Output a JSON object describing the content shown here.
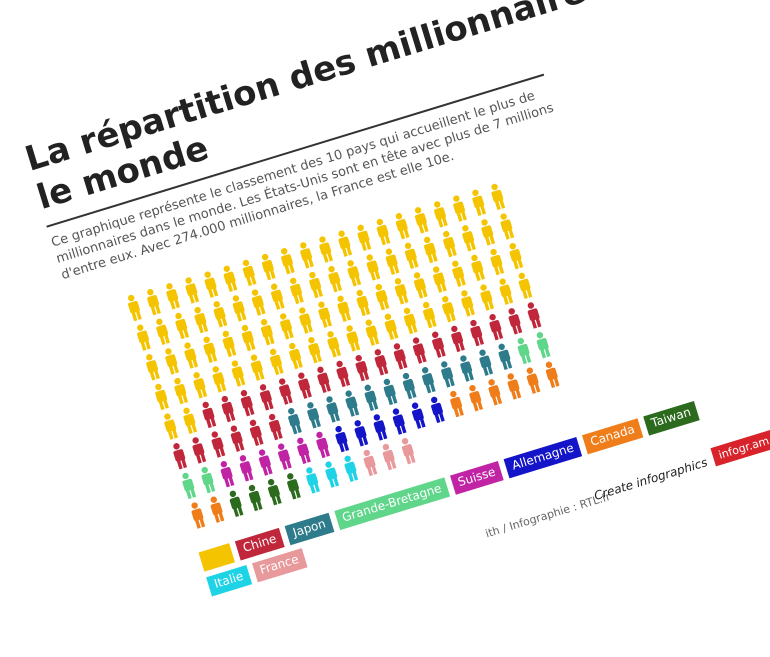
{
  "chart_data": {
    "type": "pictogram",
    "title": "La répartition des millionnaires dans le monde",
    "description": "Ce graphique représente le classement des 10 pays qui accueillent le plus de millionnaires dans le monde. Les États-Unis sont en tête avec plus de 7 millions d'entre eux. Avec 274.000 millionnaires, la France est elle 10e.",
    "categories": [
      null,
      "Chine",
      "Japon",
      "Grande-Bretagne",
      "Suisse",
      "Allemagne",
      "Canada",
      "Taiwan",
      "Italie",
      "France"
    ],
    "values": [
      82,
      24,
      12,
      4,
      6,
      6,
      8,
      4,
      3,
      3
    ],
    "colors": [
      "#f5c400",
      "#c0273a",
      "#2e7b8c",
      "#5fd68a",
      "#c024a5",
      "#1414c8",
      "#ef7d1a",
      "#2c6b1e",
      "#1fd3e6",
      "#e8999b"
    ],
    "source": "ith / Infographie : RTL.fr",
    "credit": "Create infographics",
    "brand": "infogr.am"
  }
}
